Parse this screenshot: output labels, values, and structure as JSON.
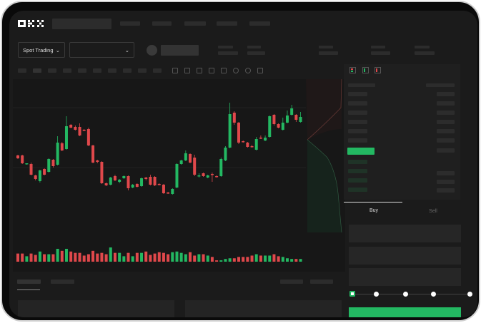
{
  "brand": {
    "logo": "OKX"
  },
  "toolbar": {
    "market_type": "Spot Trading",
    "pair_select": ""
  },
  "order_form": {
    "tabs": [
      {
        "label": "Buy",
        "active": true
      },
      {
        "label": "Sell",
        "active": false
      }
    ],
    "leverage_slider_value": 0
  },
  "colors": {
    "up": "#23b862",
    "down": "#e0484b",
    "background": "#1b1b1b"
  },
  "chart_data": {
    "type": "candlestick",
    "candles": [
      [
        97,
        93,
        98,
        92
      ],
      [
        97,
        86,
        98,
        85
      ],
      [
        85,
        86,
        86,
        84
      ],
      [
        85,
        70,
        87,
        69
      ],
      [
        69,
        64,
        70,
        62
      ],
      [
        61,
        76,
        77,
        59
      ],
      [
        78,
        70,
        79,
        69
      ],
      [
        74,
        92,
        93,
        73
      ],
      [
        91,
        82,
        92,
        80
      ],
      [
        84,
        115,
        124,
        83
      ],
      [
        114,
        104,
        116,
        103
      ],
      [
        106,
        138,
        152,
        105
      ],
      [
        140,
        136,
        141,
        135
      ],
      [
        137,
        133,
        139,
        132
      ],
      [
        137,
        125,
        142,
        124
      ],
      [
        133,
        132,
        134,
        131
      ],
      [
        134,
        111,
        136,
        110
      ],
      [
        111,
        87,
        112,
        86
      ],
      [
        90,
        88,
        91,
        86
      ],
      [
        88,
        58,
        89,
        57
      ],
      [
        58,
        55,
        59,
        54
      ],
      [
        56,
        66,
        67,
        55
      ],
      [
        68,
        62,
        70,
        61
      ],
      [
        60,
        63,
        64,
        58
      ],
      [
        65,
        68,
        69,
        64
      ],
      [
        68,
        51,
        69,
        48
      ],
      [
        52,
        56,
        57,
        51
      ],
      [
        57,
        53,
        58,
        52
      ],
      [
        54,
        65,
        66,
        53
      ],
      [
        66,
        64,
        67,
        62
      ],
      [
        67,
        56,
        70,
        55
      ],
      [
        67,
        55,
        68,
        54
      ],
      [
        57,
        56,
        58,
        55
      ],
      [
        56,
        44,
        57,
        43
      ],
      [
        45,
        44,
        46,
        43
      ],
      [
        43,
        50,
        51,
        42
      ],
      [
        52,
        85,
        86,
        51
      ],
      [
        85,
        90,
        91,
        84
      ],
      [
        90,
        100,
        104,
        89
      ],
      [
        99,
        87,
        100,
        86
      ],
      [
        94,
        70,
        98,
        68
      ],
      [
        68,
        69,
        72,
        66
      ],
      [
        72,
        68,
        73,
        67
      ],
      [
        66,
        69,
        70,
        65
      ],
      [
        71,
        70,
        73,
        60
      ],
      [
        68,
        67,
        69,
        66
      ],
      [
        68,
        92,
        94,
        67
      ],
      [
        90,
        108,
        110,
        89
      ],
      [
        108,
        155,
        171,
        107
      ],
      [
        157,
        143,
        159,
        140
      ],
      [
        143,
        115,
        144,
        113
      ],
      [
        117,
        116,
        118,
        115
      ],
      [
        115,
        109,
        116,
        108
      ],
      [
        110,
        109,
        112,
        108
      ],
      [
        105,
        120,
        123,
        104
      ],
      [
        122,
        121,
        125,
        120
      ],
      [
        118,
        122,
        125,
        117
      ],
      [
        123,
        152,
        153,
        122
      ],
      [
        154,
        141,
        155,
        139
      ],
      [
        141,
        136,
        142,
        135
      ],
      [
        133,
        143,
        150,
        132
      ],
      [
        143,
        153,
        160,
        142
      ],
      [
        154,
        163,
        168,
        153
      ],
      [
        154,
        147,
        155,
        144
      ],
      [
        144,
        151,
        158,
        143
      ]
    ],
    "volume": [
      12,
      12,
      8,
      12,
      10,
      15,
      11,
      11,
      11,
      19,
      16,
      19,
      15,
      13,
      13,
      9,
      11,
      16,
      12,
      13,
      11,
      21,
      13,
      13,
      8,
      13,
      8,
      13,
      13,
      15,
      10,
      12,
      14,
      13,
      11,
      14,
      15,
      13,
      11,
      14,
      9,
      11,
      11,
      9,
      7,
      2,
      2,
      4,
      5,
      5,
      7,
      7,
      7,
      9,
      11,
      9,
      9,
      9,
      11,
      8,
      7,
      5,
      4,
      4,
      4
    ]
  }
}
